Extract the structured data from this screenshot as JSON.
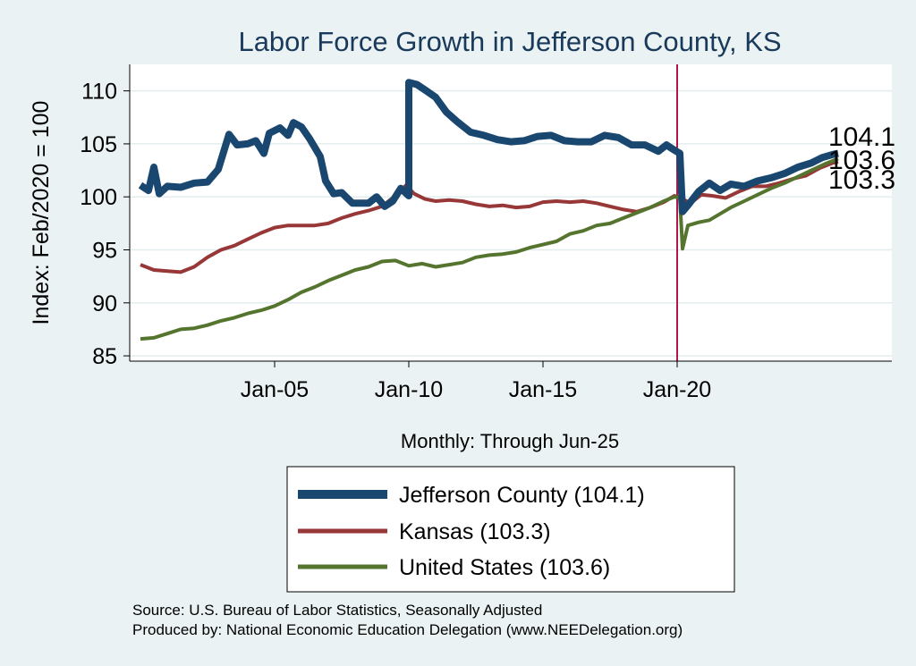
{
  "chart_data": {
    "type": "line",
    "title": "Labor Force Growth in Jefferson  County, KS",
    "ylabel": "Index: Feb/2020 = 100",
    "xlabel": "Monthly: Through Jun-25",
    "ylim": [
      84.5,
      112.5
    ],
    "yticks": [
      85,
      90,
      95,
      100,
      105,
      110
    ],
    "xticks": [
      {
        "label": "Jan-05",
        "t": 2005.0
      },
      {
        "label": "Jan-10",
        "t": 2010.0
      },
      {
        "label": "Jan-15",
        "t": 2015.0
      },
      {
        "label": "Jan-20",
        "t": 2020.0
      }
    ],
    "x_range": [
      1999.6,
      2028.0
    ],
    "vline_t": 2020.0,
    "vline_color": "#b0174b",
    "grid": true,
    "series": [
      {
        "name": "Jefferson  County",
        "legend": "Jefferson  County (104.1)",
        "color": "#1a476f",
        "width": 8,
        "end_label": "104.1",
        "points": [
          [
            2000.0,
            101.1
          ],
          [
            2000.3,
            100.6
          ],
          [
            2000.5,
            102.8
          ],
          [
            2000.7,
            100.3
          ],
          [
            2001.0,
            101.0
          ],
          [
            2001.5,
            100.9
          ],
          [
            2002.0,
            101.3
          ],
          [
            2002.5,
            101.4
          ],
          [
            2002.9,
            102.6
          ],
          [
            2003.3,
            105.9
          ],
          [
            2003.6,
            104.9
          ],
          [
            2004.0,
            105.0
          ],
          [
            2004.3,
            105.3
          ],
          [
            2004.6,
            104.1
          ],
          [
            2004.8,
            106.0
          ],
          [
            2005.2,
            106.5
          ],
          [
            2005.5,
            105.8
          ],
          [
            2005.7,
            107.0
          ],
          [
            2006.0,
            106.6
          ],
          [
            2006.3,
            105.5
          ],
          [
            2006.7,
            103.8
          ],
          [
            2006.9,
            101.5
          ],
          [
            2007.2,
            100.3
          ],
          [
            2007.5,
            100.4
          ],
          [
            2007.9,
            99.4
          ],
          [
            2008.2,
            99.4
          ],
          [
            2008.5,
            99.4
          ],
          [
            2008.8,
            100.0
          ],
          [
            2009.1,
            99.1
          ],
          [
            2009.4,
            99.6
          ],
          [
            2009.7,
            100.8
          ],
          [
            2010.0,
            100.1
          ],
          [
            2010.0,
            110.8
          ],
          [
            2010.3,
            110.6
          ],
          [
            2010.6,
            110.1
          ],
          [
            2011.0,
            109.4
          ],
          [
            2011.4,
            108.0
          ],
          [
            2011.8,
            107.1
          ],
          [
            2012.3,
            106.1
          ],
          [
            2012.8,
            105.8
          ],
          [
            2013.3,
            105.4
          ],
          [
            2013.8,
            105.2
          ],
          [
            2014.3,
            105.3
          ],
          [
            2014.8,
            105.7
          ],
          [
            2015.3,
            105.8
          ],
          [
            2015.8,
            105.3
          ],
          [
            2016.3,
            105.2
          ],
          [
            2016.8,
            105.2
          ],
          [
            2017.3,
            105.8
          ],
          [
            2017.8,
            105.6
          ],
          [
            2018.3,
            104.9
          ],
          [
            2018.8,
            104.9
          ],
          [
            2019.3,
            104.3
          ],
          [
            2019.6,
            104.9
          ],
          [
            2019.9,
            104.4
          ],
          [
            2020.1,
            104.1
          ],
          [
            2020.2,
            98.6
          ],
          [
            2020.4,
            99.2
          ],
          [
            2020.8,
            100.5
          ],
          [
            2021.2,
            101.3
          ],
          [
            2021.6,
            100.6
          ],
          [
            2022.0,
            101.2
          ],
          [
            2022.5,
            101.0
          ],
          [
            2023.0,
            101.5
          ],
          [
            2023.5,
            101.8
          ],
          [
            2024.0,
            102.2
          ],
          [
            2024.5,
            102.8
          ],
          [
            2025.0,
            103.2
          ],
          [
            2025.4,
            103.7
          ],
          [
            2025.8,
            104.0
          ],
          [
            2026.0,
            104.1
          ]
        ]
      },
      {
        "name": "Kansas",
        "legend": "Kansas (103.3)",
        "color": "#983737",
        "width": 4,
        "end_label": "103.3",
        "points": [
          [
            2000.0,
            93.6
          ],
          [
            2000.5,
            93.1
          ],
          [
            2001.0,
            93.0
          ],
          [
            2001.5,
            92.9
          ],
          [
            2002.0,
            93.4
          ],
          [
            2002.5,
            94.3
          ],
          [
            2003.0,
            95.0
          ],
          [
            2003.5,
            95.4
          ],
          [
            2004.0,
            96.0
          ],
          [
            2004.5,
            96.6
          ],
          [
            2005.0,
            97.1
          ],
          [
            2005.5,
            97.3
          ],
          [
            2006.0,
            97.3
          ],
          [
            2006.5,
            97.3
          ],
          [
            2007.0,
            97.5
          ],
          [
            2007.5,
            98.0
          ],
          [
            2008.0,
            98.4
          ],
          [
            2008.5,
            98.7
          ],
          [
            2009.0,
            99.1
          ],
          [
            2009.5,
            100.1
          ],
          [
            2009.9,
            101.1
          ],
          [
            2010.2,
            100.3
          ],
          [
            2010.6,
            99.8
          ],
          [
            2011.0,
            99.6
          ],
          [
            2011.5,
            99.7
          ],
          [
            2012.0,
            99.6
          ],
          [
            2012.5,
            99.3
          ],
          [
            2013.0,
            99.1
          ],
          [
            2013.5,
            99.2
          ],
          [
            2014.0,
            99.0
          ],
          [
            2014.5,
            99.1
          ],
          [
            2015.0,
            99.5
          ],
          [
            2015.5,
            99.6
          ],
          [
            2016.0,
            99.5
          ],
          [
            2016.5,
            99.6
          ],
          [
            2017.0,
            99.4
          ],
          [
            2017.5,
            99.1
          ],
          [
            2018.0,
            98.8
          ],
          [
            2018.5,
            98.6
          ],
          [
            2019.0,
            99.0
          ],
          [
            2019.5,
            99.5
          ],
          [
            2019.9,
            100.1
          ],
          [
            2020.2,
            99.8
          ],
          [
            2020.5,
            99.4
          ],
          [
            2020.9,
            100.2
          ],
          [
            2021.3,
            100.1
          ],
          [
            2021.8,
            99.9
          ],
          [
            2022.3,
            100.5
          ],
          [
            2022.8,
            101.0
          ],
          [
            2023.3,
            101.0
          ],
          [
            2023.8,
            101.3
          ],
          [
            2024.3,
            101.7
          ],
          [
            2024.8,
            102.0
          ],
          [
            2025.3,
            102.7
          ],
          [
            2025.8,
            103.2
          ],
          [
            2026.0,
            103.3
          ]
        ]
      },
      {
        "name": "United States",
        "legend": "United States (103.6)",
        "color": "#55752f",
        "width": 4,
        "end_label": "103.6",
        "points": [
          [
            2000.0,
            86.6
          ],
          [
            2000.5,
            86.7
          ],
          [
            2001.0,
            87.1
          ],
          [
            2001.5,
            87.5
          ],
          [
            2002.0,
            87.6
          ],
          [
            2002.5,
            87.9
          ],
          [
            2003.0,
            88.3
          ],
          [
            2003.5,
            88.6
          ],
          [
            2004.0,
            89.0
          ],
          [
            2004.5,
            89.3
          ],
          [
            2005.0,
            89.7
          ],
          [
            2005.5,
            90.3
          ],
          [
            2006.0,
            91.0
          ],
          [
            2006.5,
            91.5
          ],
          [
            2007.0,
            92.1
          ],
          [
            2007.5,
            92.6
          ],
          [
            2008.0,
            93.1
          ],
          [
            2008.5,
            93.4
          ],
          [
            2009.0,
            93.9
          ],
          [
            2009.5,
            94.0
          ],
          [
            2010.0,
            93.5
          ],
          [
            2010.5,
            93.7
          ],
          [
            2011.0,
            93.4
          ],
          [
            2011.5,
            93.6
          ],
          [
            2012.0,
            93.8
          ],
          [
            2012.5,
            94.3
          ],
          [
            2013.0,
            94.5
          ],
          [
            2013.5,
            94.6
          ],
          [
            2014.0,
            94.8
          ],
          [
            2014.5,
            95.2
          ],
          [
            2015.0,
            95.5
          ],
          [
            2015.5,
            95.8
          ],
          [
            2016.0,
            96.5
          ],
          [
            2016.5,
            96.8
          ],
          [
            2017.0,
            97.3
          ],
          [
            2017.5,
            97.5
          ],
          [
            2018.0,
            98.0
          ],
          [
            2018.5,
            98.5
          ],
          [
            2019.0,
            99.0
          ],
          [
            2019.5,
            99.6
          ],
          [
            2019.9,
            100.0
          ],
          [
            2020.1,
            99.9
          ],
          [
            2020.2,
            95.1
          ],
          [
            2020.4,
            97.3
          ],
          [
            2020.8,
            97.6
          ],
          [
            2021.2,
            97.8
          ],
          [
            2021.6,
            98.4
          ],
          [
            2022.0,
            99.0
          ],
          [
            2022.5,
            99.6
          ],
          [
            2023.0,
            100.2
          ],
          [
            2023.5,
            100.8
          ],
          [
            2024.0,
            101.3
          ],
          [
            2024.5,
            101.9
          ],
          [
            2025.0,
            102.5
          ],
          [
            2025.5,
            103.1
          ],
          [
            2026.0,
            103.6
          ]
        ]
      }
    ],
    "source_line": "Source: U.S. Bureau of Labor Statistics, Seasonally Adjusted",
    "produced_line": "Produced by: National Economic Education Delegation (www.NEEDelegation.org)"
  }
}
